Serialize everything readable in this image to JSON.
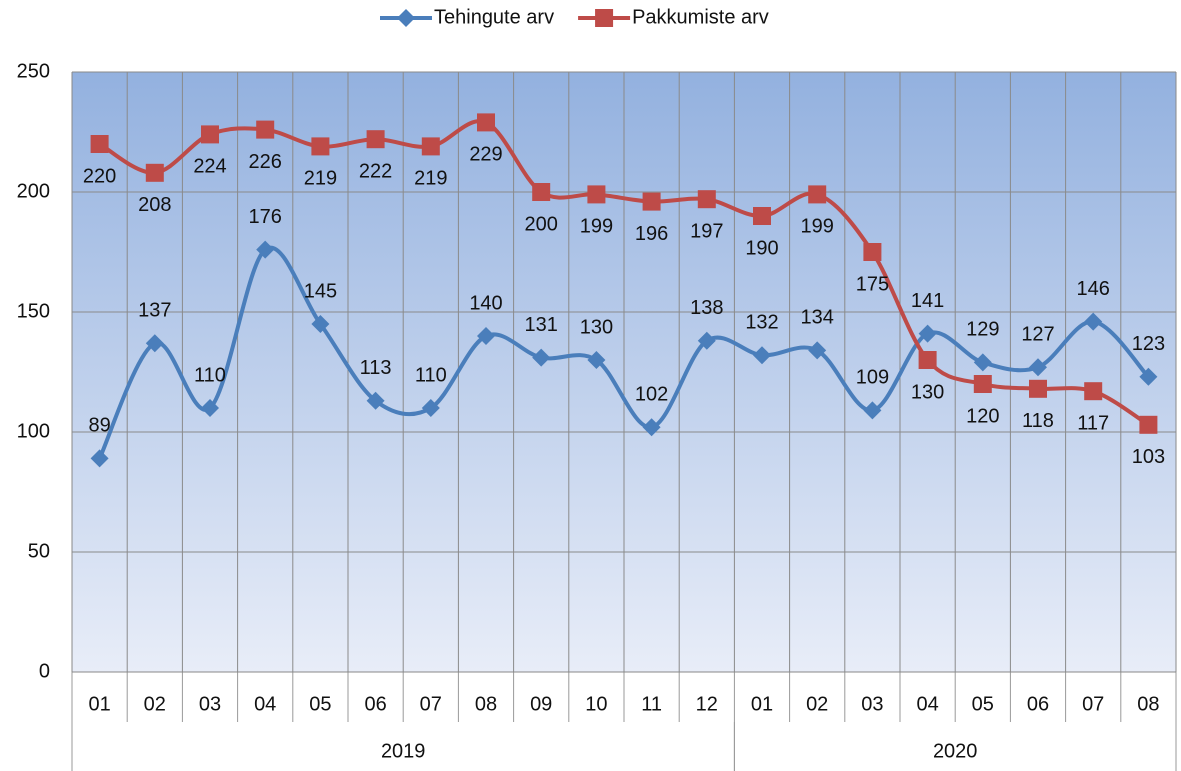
{
  "chart_data": {
    "type": "line",
    "groups": [
      {
        "label": "2019",
        "categories": [
          "01",
          "02",
          "03",
          "04",
          "05",
          "06",
          "07",
          "08",
          "09",
          "10",
          "11",
          "12"
        ]
      },
      {
        "label": "2020",
        "categories": [
          "01",
          "02",
          "03",
          "04",
          "05",
          "06",
          "07",
          "08"
        ]
      }
    ],
    "series": [
      {
        "name": "Tehingute arv",
        "color": "#4a7ebb",
        "marker": "diamond",
        "label_side": "above",
        "values": [
          89,
          137,
          110,
          176,
          145,
          113,
          110,
          140,
          131,
          130,
          102,
          138,
          132,
          134,
          109,
          141,
          129,
          127,
          146,
          123
        ]
      },
      {
        "name": "Pakkumiste arv",
        "color": "#be4b48",
        "marker": "square",
        "label_side": "below",
        "values": [
          220,
          208,
          224,
          226,
          219,
          222,
          219,
          229,
          200,
          199,
          196,
          197,
          190,
          199,
          175,
          130,
          120,
          118,
          117,
          103
        ]
      }
    ],
    "ylim": [
      0,
      250
    ],
    "yticks": [
      0,
      50,
      100,
      150,
      200,
      250
    ],
    "grid": true,
    "smooth": true,
    "legend": "top"
  }
}
